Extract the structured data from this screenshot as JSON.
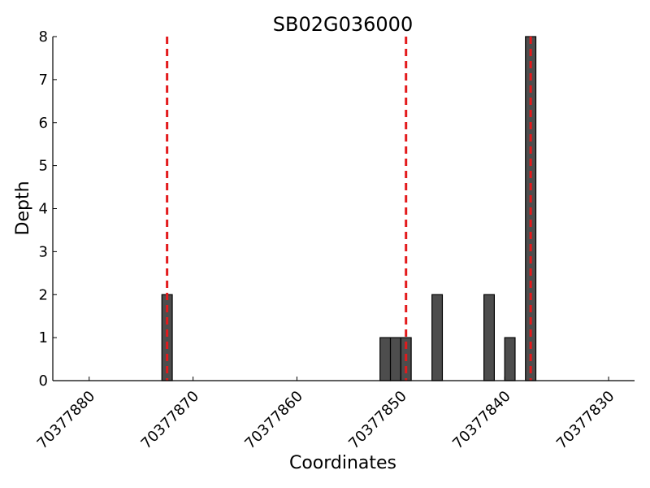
{
  "chart_data": {
    "type": "bar",
    "title": "SB02G036000",
    "xlabel": "Coordinates",
    "ylabel": "Depth",
    "xlim": [
      70377883.5,
      70377827.5
    ],
    "ylim": [
      0,
      8
    ],
    "x_reversed": true,
    "xticks": [
      70377880,
      70377870,
      70377860,
      70377850,
      70377840,
      70377830
    ],
    "xtick_labels": [
      "70377880",
      "70377870",
      "70377860",
      "70377850",
      "70377840",
      "70377830"
    ],
    "yticks": [
      0,
      1,
      2,
      3,
      4,
      5,
      6,
      7,
      8
    ],
    "ytick_labels": [
      "0",
      "1",
      "2",
      "3",
      "4",
      "5",
      "6",
      "7",
      "8"
    ],
    "bar_width": 1,
    "bars": [
      {
        "x": 70377872.5,
        "value": 2
      },
      {
        "x": 70377851.5,
        "value": 1
      },
      {
        "x": 70377850.5,
        "value": 1
      },
      {
        "x": 70377849.5,
        "value": 1
      },
      {
        "x": 70377846.5,
        "value": 2
      },
      {
        "x": 70377841.5,
        "value": 2
      },
      {
        "x": 70377839.5,
        "value": 1
      },
      {
        "x": 70377837.5,
        "value": 8
      }
    ],
    "reference_lines": [
      70377872.5,
      70377849.5,
      70377837.5
    ],
    "bar_color": "#4d4d4d",
    "reference_line_color": "#e31a1c",
    "reference_line_style": "dashed",
    "grid": false,
    "legend": "none"
  }
}
